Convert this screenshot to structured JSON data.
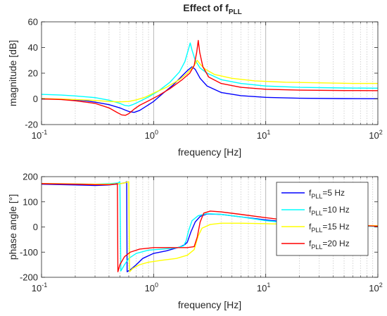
{
  "chart_data": [
    {
      "type": "line",
      "title_main": "Effect of f",
      "title_sub": "PLL",
      "xlabel": "frequency [Hz]",
      "ylabel": "magnitude [dB]",
      "xscale": "log",
      "xlim": [
        0.1,
        100
      ],
      "ylim": [
        -20,
        60
      ],
      "xticks": [
        0.1,
        1,
        10,
        100
      ],
      "xtick_bases": [
        "10",
        "10",
        "10",
        "10"
      ],
      "xtick_exps": [
        "-1",
        "0",
        "1",
        "2"
      ],
      "yticks": [
        -20,
        0,
        20,
        40,
        60
      ],
      "ytick_labels": [
        "-20",
        "0",
        "20",
        "40",
        "60"
      ],
      "grid": "x-major-and-minor",
      "series": [
        {
          "color": "#0000ff",
          "points": [
            [
              0.1,
              0
            ],
            [
              0.15,
              -0.2
            ],
            [
              0.2,
              -0.8
            ],
            [
              0.25,
              -1.5
            ],
            [
              0.3,
              -2.5
            ],
            [
              0.4,
              -4.5
            ],
            [
              0.5,
              -7
            ],
            [
              0.55,
              -8.5
            ],
            [
              0.6,
              -9.8
            ],
            [
              0.67,
              -10.5
            ],
            [
              0.75,
              -9
            ],
            [
              0.85,
              -6
            ],
            [
              1,
              -2
            ],
            [
              1.2,
              4
            ],
            [
              1.5,
              11
            ],
            [
              1.8,
              18
            ],
            [
              2.0,
              22
            ],
            [
              2.2,
              25
            ],
            [
              2.35,
              23
            ],
            [
              2.6,
              16
            ],
            [
              3,
              10
            ],
            [
              4,
              5
            ],
            [
              6,
              2.5
            ],
            [
              10,
              1.2
            ],
            [
              20,
              0.5
            ],
            [
              50,
              0.2
            ],
            [
              100,
              0.1
            ]
          ]
        },
        {
          "color": "#00ffff",
          "points": [
            [
              0.1,
              3.5
            ],
            [
              0.15,
              3
            ],
            [
              0.2,
              2.3
            ],
            [
              0.3,
              1
            ],
            [
              0.4,
              -1
            ],
            [
              0.5,
              -3.5
            ],
            [
              0.55,
              -5
            ],
            [
              0.6,
              -5.5
            ],
            [
              0.65,
              -4.5
            ],
            [
              0.75,
              -2
            ],
            [
              0.9,
              1.5
            ],
            [
              1.1,
              6
            ],
            [
              1.4,
              13
            ],
            [
              1.7,
              21
            ],
            [
              1.9,
              29
            ],
            [
              2.02,
              37
            ],
            [
              2.12,
              43.5
            ],
            [
              2.2,
              38
            ],
            [
              2.35,
              30
            ],
            [
              2.6,
              24
            ],
            [
              3,
              20
            ],
            [
              4,
              15
            ],
            [
              6,
              12
            ],
            [
              10,
              10
            ],
            [
              20,
              9
            ],
            [
              50,
              8.5
            ],
            [
              100,
              8.3
            ]
          ]
        },
        {
          "color": "#ffff00",
          "points": [
            [
              0.1,
              0.2
            ],
            [
              0.15,
              -0.1
            ],
            [
              0.2,
              -0.5
            ],
            [
              0.3,
              -1.2
            ],
            [
              0.4,
              -2
            ],
            [
              0.5,
              -2.3
            ],
            [
              0.6,
              -2
            ],
            [
              0.7,
              -0.8
            ],
            [
              0.85,
              1.5
            ],
            [
              1,
              4.5
            ],
            [
              1.3,
              9
            ],
            [
              1.7,
              15
            ],
            [
              2.0,
              20
            ],
            [
              2.3,
              26
            ],
            [
              2.45,
              30
            ],
            [
              2.6,
              27
            ],
            [
              2.9,
              23
            ],
            [
              3.5,
              19
            ],
            [
              5,
              16
            ],
            [
              8,
              14
            ],
            [
              15,
              13
            ],
            [
              30,
              12.5
            ],
            [
              60,
              12
            ],
            [
              100,
              12
            ]
          ]
        },
        {
          "color": "#ff0000",
          "points": [
            [
              0.1,
              0
            ],
            [
              0.15,
              -0.5
            ],
            [
              0.2,
              -1.5
            ],
            [
              0.3,
              -3.5
            ],
            [
              0.4,
              -7
            ],
            [
              0.47,
              -10.5
            ],
            [
              0.52,
              -12.5
            ],
            [
              0.56,
              -12.8
            ],
            [
              0.6,
              -11.5
            ],
            [
              0.67,
              -8
            ],
            [
              0.75,
              -5
            ],
            [
              0.9,
              -1.5
            ],
            [
              1.1,
              2.5
            ],
            [
              1.4,
              8
            ],
            [
              1.8,
              15
            ],
            [
              2.1,
              20
            ],
            [
              2.3,
              26
            ],
            [
              2.42,
              36
            ],
            [
              2.5,
              45.5
            ],
            [
              2.58,
              36
            ],
            [
              2.75,
              25
            ],
            [
              3.1,
              17
            ],
            [
              4,
              12
            ],
            [
              6,
              9
            ],
            [
              10,
              7.5
            ],
            [
              20,
              6.8
            ],
            [
              50,
              6.5
            ],
            [
              100,
              6.4
            ]
          ]
        }
      ]
    },
    {
      "type": "line",
      "xlabel": "frequency [Hz]",
      "ylabel": "phase angle [°]",
      "xscale": "log",
      "xlim": [
        0.1,
        100
      ],
      "ylim": [
        -200,
        200
      ],
      "xticks": [
        0.1,
        1,
        10,
        100
      ],
      "xtick_bases": [
        "10",
        "10",
        "10",
        "10"
      ],
      "xtick_exps": [
        "-1",
        "0",
        "1",
        "2"
      ],
      "yticks": [
        -200,
        -100,
        0,
        100,
        200
      ],
      "ytick_labels": [
        "-200",
        "-100",
        "0",
        "100",
        "200"
      ],
      "grid": "x-major-and-minor",
      "legend": {
        "placement": "right",
        "entries": [
          {
            "prefix": "f",
            "sub": "PLL",
            "suffix": "=5 Hz",
            "color": "#0000ff"
          },
          {
            "prefix": "f",
            "sub": "PLL",
            "suffix": "=10 Hz",
            "color": "#00ffff"
          },
          {
            "prefix": "f",
            "sub": "PLL",
            "suffix": "=15 Hz",
            "color": "#ffff00"
          },
          {
            "prefix": "f",
            "sub": "PLL",
            "suffix": "=20 Hz",
            "color": "#ff0000"
          }
        ]
      },
      "series": [
        {
          "color": "#0000ff",
          "points": [
            [
              0.1,
              170
            ],
            [
              0.2,
              167
            ],
            [
              0.3,
              165
            ],
            [
              0.4,
              167
            ],
            [
              0.5,
              172
            ],
            [
              0.56,
              176
            ],
            [
              0.575,
              180
            ],
            [
              0.58,
              -178
            ],
            [
              0.62,
              -170
            ],
            [
              0.7,
              -150
            ],
            [
              0.8,
              -125
            ],
            [
              1,
              -105
            ],
            [
              1.3,
              -95
            ],
            [
              1.7,
              -80
            ],
            [
              1.9,
              -70
            ],
            [
              2.0,
              -60
            ],
            [
              2.15,
              -20
            ],
            [
              2.35,
              20
            ],
            [
              2.6,
              42
            ],
            [
              3,
              52
            ],
            [
              4,
              50
            ],
            [
              6,
              40
            ],
            [
              10,
              28
            ],
            [
              20,
              15
            ],
            [
              50,
              7
            ],
            [
              100,
              4
            ]
          ]
        },
        {
          "color": "#00ffff",
          "points": [
            [
              0.1,
              173
            ],
            [
              0.2,
              171
            ],
            [
              0.3,
              170
            ],
            [
              0.4,
              172
            ],
            [
              0.48,
              175
            ],
            [
              0.5,
              180
            ],
            [
              0.51,
              -175
            ],
            [
              0.55,
              -150
            ],
            [
              0.6,
              -125
            ],
            [
              0.7,
              -105
            ],
            [
              0.9,
              -92
            ],
            [
              1.2,
              -88
            ],
            [
              1.6,
              -83
            ],
            [
              1.85,
              -75
            ],
            [
              1.95,
              -55
            ],
            [
              2.05,
              -15
            ],
            [
              2.2,
              25
            ],
            [
              2.5,
              45
            ],
            [
              3,
              53
            ],
            [
              4,
              50
            ],
            [
              6,
              40
            ],
            [
              10,
              25
            ],
            [
              20,
              12
            ],
            [
              50,
              5
            ],
            [
              100,
              2
            ]
          ]
        },
        {
          "color": "#ffff00",
          "points": [
            [
              0.1,
              173
            ],
            [
              0.2,
              171
            ],
            [
              0.3,
              170
            ],
            [
              0.4,
              170
            ],
            [
              0.5,
              172
            ],
            [
              0.56,
              176
            ],
            [
              0.6,
              180
            ],
            [
              0.61,
              -178
            ],
            [
              0.65,
              -165
            ],
            [
              0.75,
              -150
            ],
            [
              0.9,
              -140
            ],
            [
              1.2,
              -132
            ],
            [
              1.6,
              -125
            ],
            [
              2,
              -112
            ],
            [
              2.3,
              -90
            ],
            [
              2.5,
              -35
            ],
            [
              2.7,
              -5
            ],
            [
              3.2,
              10
            ],
            [
              4,
              15
            ],
            [
              6,
              15
            ],
            [
              10,
              13
            ],
            [
              20,
              10
            ],
            [
              50,
              7
            ],
            [
              100,
              5
            ]
          ]
        },
        {
          "color": "#ff0000",
          "points": [
            [
              0.1,
              172
            ],
            [
              0.2,
              170
            ],
            [
              0.3,
              168
            ],
            [
              0.4,
              168
            ],
            [
              0.45,
              170
            ],
            [
              0.475,
              172
            ],
            [
              0.48,
              -178
            ],
            [
              0.5,
              -150
            ],
            [
              0.55,
              -118
            ],
            [
              0.62,
              -100
            ],
            [
              0.75,
              -88
            ],
            [
              1,
              -82
            ],
            [
              1.5,
              -82
            ],
            [
              2,
              -82
            ],
            [
              2.3,
              -78
            ],
            [
              2.45,
              -40
            ],
            [
              2.6,
              20
            ],
            [
              2.8,
              55
            ],
            [
              3.2,
              63
            ],
            [
              4,
              60
            ],
            [
              6,
              50
            ],
            [
              10,
              37
            ],
            [
              20,
              20
            ],
            [
              50,
              8
            ],
            [
              100,
              3
            ]
          ]
        }
      ]
    }
  ]
}
